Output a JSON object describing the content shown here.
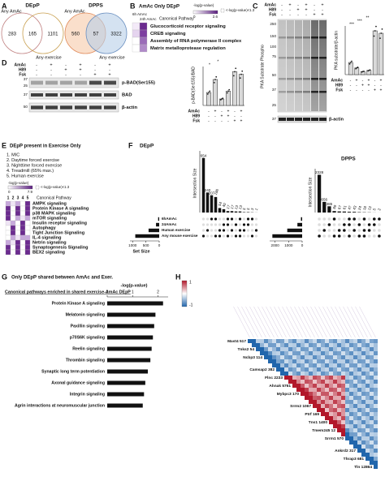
{
  "A": {
    "letter": "A",
    "venns": [
      {
        "title": "DEpP",
        "left": "Any AmAc",
        "right": "Any exercise",
        "counts": [
          283,
          165,
          1101
        ]
      },
      {
        "title": "DPPS",
        "left": "Any AmAc",
        "right": "Any exercise",
        "counts": [
          560,
          57,
          3322
        ]
      }
    ]
  },
  "B": {
    "letter": "B",
    "title": "AmAc Only DEpP",
    "columns": [
      "6h AmAc",
      "24h AmAc"
    ],
    "legend_title": "-log(p-value)",
    "legend_ticks": [
      0,
      2.6
    ],
    "threshold": "<-log(p-value)<1.3",
    "heading": "Canonical Pathway",
    "pathways": [
      "Glucocorticoid receptor signaling",
      "CREB signaling",
      "Assembly of RNA polymerase II complex",
      "Matrix metalloprotease regulation"
    ]
  },
  "C": {
    "letter": "C",
    "treatments": [
      "AmAc",
      "H89",
      "Fsk"
    ],
    "signs": [
      [
        "-",
        "+",
        "-",
        "+",
        "-",
        "+"
      ],
      [
        "-",
        "-",
        "+",
        "+",
        "-",
        "-"
      ],
      [
        "-",
        "-",
        "-",
        "-",
        "+",
        "+"
      ]
    ],
    "markers": [
      "250",
      "150",
      "100",
      "75",
      "50",
      "37",
      "25"
    ],
    "actin_marker": "37",
    "blot_label": "PKA Substrate Phospho",
    "loading": "β-actin",
    "ylabel": "PKA substrate/β-actin",
    "values": [
      1,
      0.55,
      0.25,
      0.35,
      3.6,
      3.4
    ],
    "ylim": [
      0,
      4
    ],
    "significance": [
      "***",
      "***",
      "**"
    ]
  },
  "D": {
    "letter": "D",
    "treatments": [
      "AmAc",
      "H89",
      "Fsk"
    ],
    "signs": [
      [
        "-",
        "+",
        "-",
        "+",
        "-",
        "+"
      ],
      [
        "-",
        "-",
        "+",
        "+",
        "-",
        "-"
      ],
      [
        "-",
        "-",
        "-",
        "-",
        "+",
        "+"
      ]
    ],
    "markers": [
      "37",
      "25",
      "37",
      "50"
    ],
    "bands": [
      "p-BAD(Ser155)",
      "BAD",
      "β-actin"
    ],
    "ylabel": "p-BAD(Ser155)/BAD",
    "values": [
      1,
      2,
      0.5,
      1.1,
      2.6,
      2.4
    ],
    "ylim": [
      0,
      3
    ],
    "significance": [
      "*",
      "*"
    ]
  },
  "E": {
    "letter": "E",
    "title": "DEpP present in Exercise Only",
    "conditions": [
      "1. MIC",
      "2. Daytime forced exercise",
      "3. Nighttime forced exercise",
      "4. Treadmill (65% max.)",
      "5. Human exercise"
    ],
    "legend_title": "-log(p-value)",
    "legend_ticks": [
      0,
      7.9
    ],
    "threshold": "<-log(p-value)<1.3",
    "columns": [
      "1",
      "2",
      "3",
      "4",
      "5"
    ],
    "heading": "Canonical Pathway",
    "pathways": [
      "AMPK signaling",
      "Protein Kinase A signaling",
      "p38 MAPK signaling",
      "mTOR signaling",
      "Insulin receptor signaling",
      "Autophagy",
      "Tight Junction Signaling",
      "IL-4 signaling",
      "Netrin signaling",
      "Synaptogenesis Signaling",
      "BEX2 signaling"
    ]
  },
  "F": {
    "letter": "F",
    "sets": [
      "6hAmAc",
      "24AmAc",
      "Human exercise",
      "Any mouse exercise"
    ],
    "set_xlabel": "Set Size",
    "charts": [
      {
        "title": "DEpP",
        "ylabel": "Intersection Size",
        "values": [
          654,
          240,
          207,
          186,
          54,
          40,
          17,
          17,
          13,
          13,
          5,
          5,
          3,
          1
        ],
        "ylim": [
          0,
          700
        ],
        "set_sizes": [
          40,
          120,
          400,
          900
        ],
        "set_xlim": [
          0,
          1100
        ],
        "set_xticks": [
          1000,
          500,
          0
        ]
      },
      {
        "title": "DPPS",
        "ylabel": "Intersection Size",
        "values": [
          2328,
          656,
          385,
          89,
          67,
          61,
          47,
          43,
          24,
          18,
          13,
          5,
          2
        ],
        "ylim": [
          0,
          2500
        ],
        "set_sizes": [
          90,
          350,
          1100,
          2200
        ],
        "set_xlim": [
          0,
          2400
        ],
        "set_xticks": [
          2000,
          1000,
          0
        ]
      }
    ]
  },
  "G": {
    "letter": "G",
    "title": "Only DEpP shared between AmAc and Exer.",
    "subtitle": "Canonical pathways enriched in shared exercise-AmAc DEpP",
    "xlabel": "-log(p-value)",
    "xlim": [
      0,
      2.4
    ],
    "xticks": [
      0,
      1,
      2
    ],
    "pathways": [
      "Protein Kinase A signaling",
      "Melatonin signaling",
      "Paxillin signaling",
      "p70S6K signaling",
      "Reelin signaling",
      "Thrombin signaling",
      "Synaptic long term potentiation",
      "Axonal guidance signaling",
      "Integrin signaling",
      "Agrin interactions at neuromuscular junction"
    ],
    "values": [
      2.2,
      1.9,
      1.85,
      1.8,
      1.75,
      1.7,
      1.6,
      1.5,
      1.45,
      1.4
    ]
  },
  "H": {
    "letter": "H",
    "colorbar_ticks": [
      1,
      -1
    ],
    "genes": [
      "Mast4 517",
      "Tnks2 54",
      "Ncbp3 114",
      "Camsap2 382",
      "Flnc 2233",
      "Ahnak 5761",
      "Mybpc3 170",
      "Srrm2 1067",
      "Ptrf 169",
      "Tns1 1400",
      "Tmem245 12",
      "Srrm1 570",
      "Ankrd2 317",
      "Thrap3 681",
      "Tln 12864"
    ]
  }
}
